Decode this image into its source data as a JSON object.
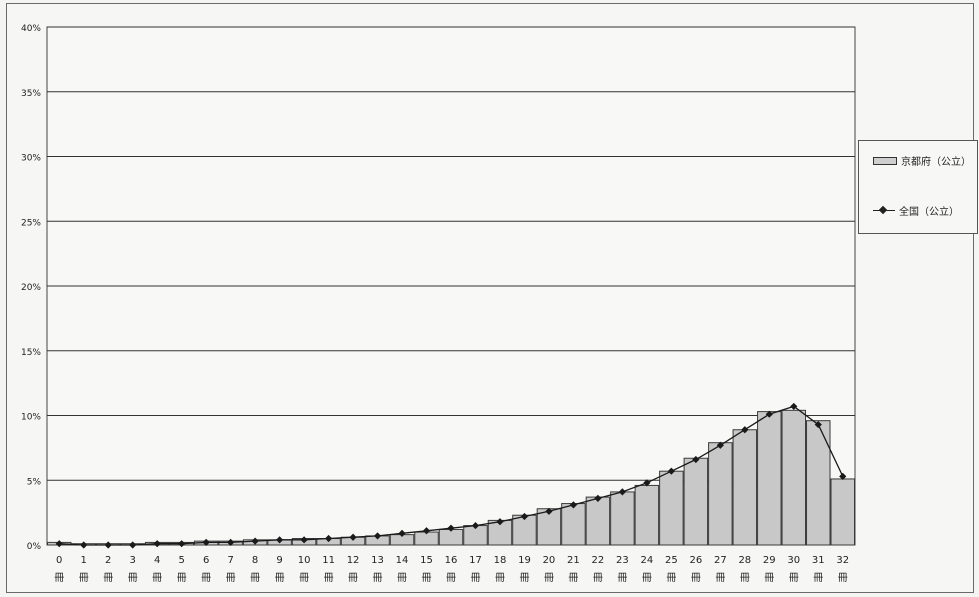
{
  "chart_data": {
    "type": "bar",
    "categories": [
      "0",
      "1",
      "2",
      "3",
      "4",
      "5",
      "6",
      "7",
      "8",
      "9",
      "10",
      "11",
      "12",
      "13",
      "14",
      "15",
      "16",
      "17",
      "18",
      "19",
      "20",
      "21",
      "22",
      "23",
      "24",
      "25",
      "26",
      "27",
      "28",
      "29",
      "30",
      "31",
      "32"
    ],
    "category_suffix": "冊",
    "y_ticks": [
      "0%",
      "5%",
      "10%",
      "15%",
      "20%",
      "25%",
      "30%",
      "35%",
      "40%"
    ],
    "ylim": [
      0,
      40
    ],
    "grid": "horizontal",
    "legend_position": "right",
    "series": [
      {
        "name": "京都府（公立）",
        "kind": "bar",
        "color": "#c8c8c8",
        "values": [
          0.2,
          0.1,
          0.1,
          0.1,
          0.2,
          0.2,
          0.3,
          0.3,
          0.4,
          0.4,
          0.5,
          0.5,
          0.6,
          0.7,
          0.8,
          1.0,
          1.2,
          1.5,
          1.9,
          2.3,
          2.8,
          3.2,
          3.7,
          4.1,
          4.6,
          5.7,
          6.7,
          7.9,
          8.9,
          10.3,
          10.4,
          9.6,
          5.1
        ]
      },
      {
        "name": "全国（公立）",
        "kind": "line",
        "color": "#1a1a1a",
        "values": [
          0.1,
          0.0,
          0.0,
          0.0,
          0.1,
          0.1,
          0.2,
          0.2,
          0.3,
          0.4,
          0.4,
          0.5,
          0.6,
          0.7,
          0.9,
          1.1,
          1.3,
          1.5,
          1.8,
          2.2,
          2.6,
          3.1,
          3.6,
          4.1,
          4.8,
          5.7,
          6.6,
          7.7,
          8.9,
          10.1,
          10.7,
          9.3,
          5.3
        ]
      }
    ]
  }
}
